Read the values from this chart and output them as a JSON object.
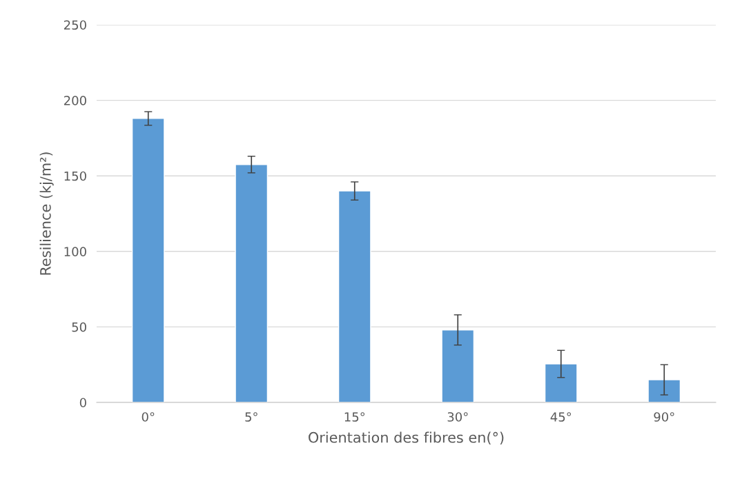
{
  "chart_data": {
    "type": "bar",
    "xlabel": "Orientation des fibres en(°)",
    "ylabel": "Resilience (kj/m²)",
    "categories": [
      "0°",
      "5°",
      "15°",
      "30°",
      "45°",
      "90°"
    ],
    "values": [
      188,
      157.5,
      140,
      48,
      25.5,
      15
    ],
    "errors": [
      4.5,
      5.5,
      6,
      10,
      9,
      10
    ],
    "color": "#5b9bd5",
    "ylim": [
      0,
      250
    ],
    "yticks": [
      0,
      50,
      100,
      150,
      200,
      250
    ],
    "grid": "y"
  }
}
